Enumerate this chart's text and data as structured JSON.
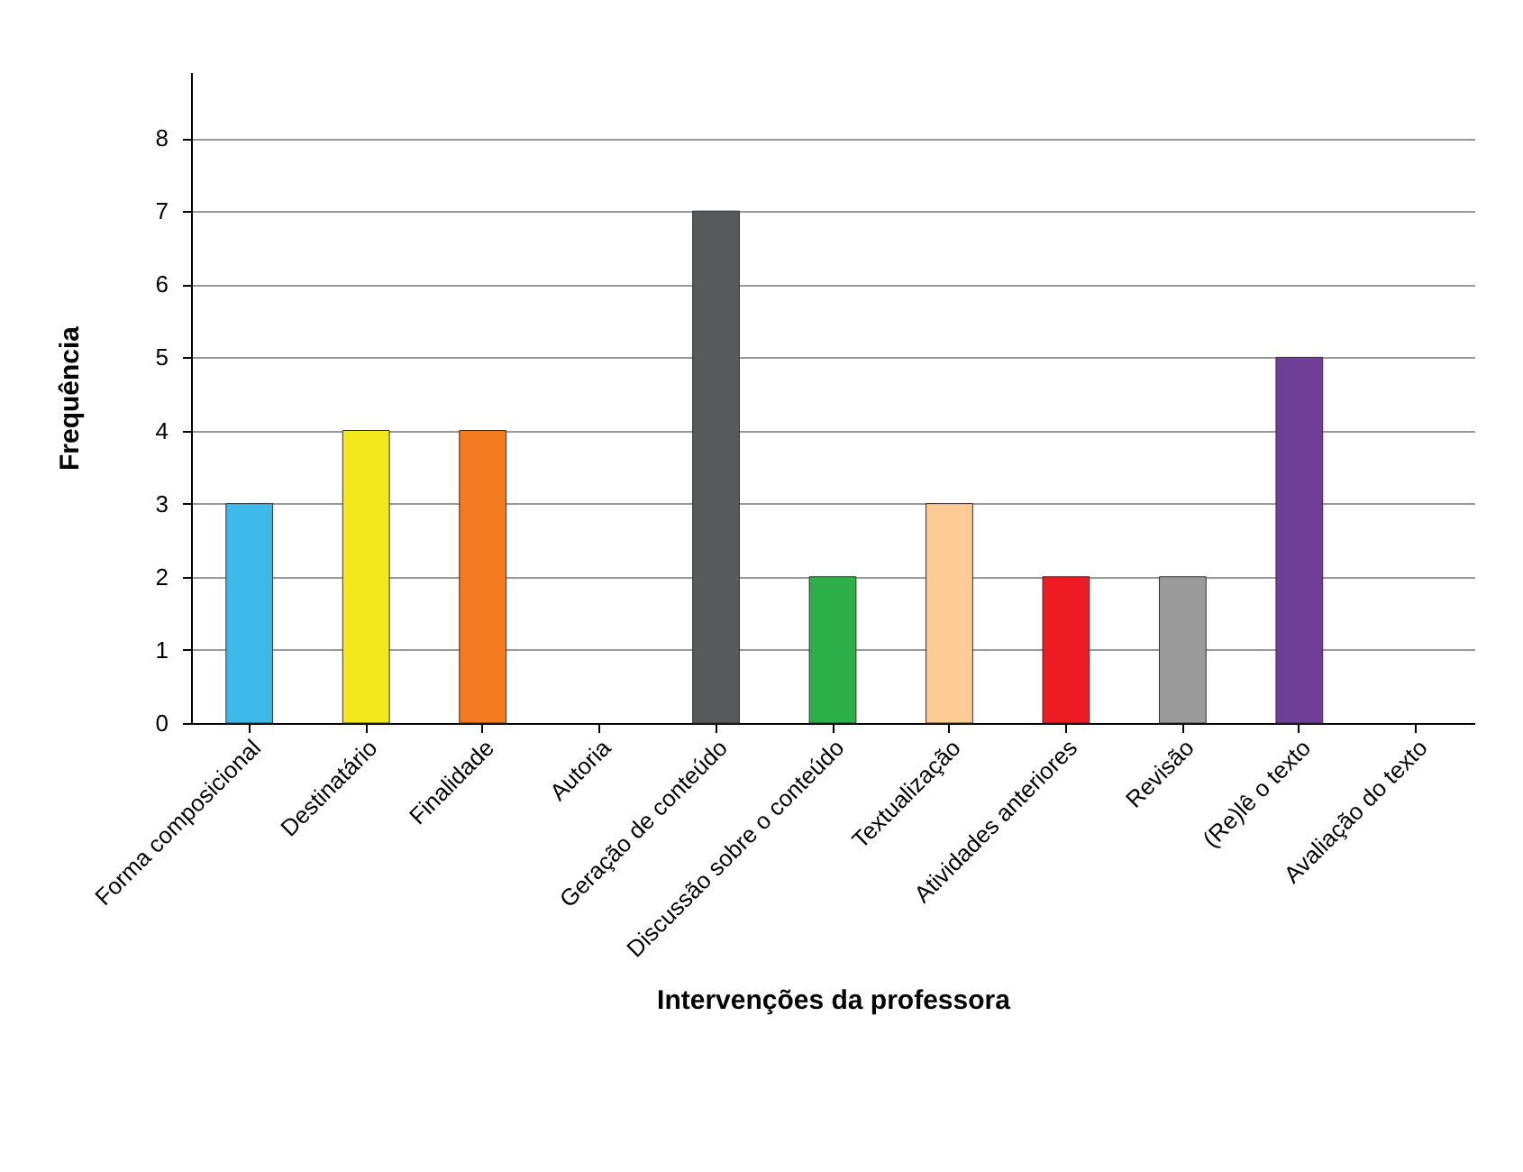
{
  "chart_data": {
    "type": "bar",
    "xlabel": "Intervenções da professora",
    "ylabel": "Frequência",
    "categories": [
      "Forma composicional",
      "Destinatário",
      "Finalidade",
      "Autoria",
      "Geração de conteúdo",
      "Discussão sobre o conteúdo",
      "Textualização",
      "Atividades anteriores",
      "Revisão",
      "(Re)lê o texto",
      "Avaliação do texto"
    ],
    "values": [
      3,
      4,
      4,
      0,
      7,
      2,
      3,
      2,
      2,
      5,
      0
    ],
    "colors": [
      "#3db9ea",
      "#f2e81c",
      "#f47a20",
      "#999999",
      "#58595b",
      "#2db04a",
      "#fdcb96",
      "#ed1c24",
      "#9b9b9b",
      "#6f3f97",
      "#999999"
    ],
    "ylim": [
      0,
      8.9
    ],
    "yticks": [
      0,
      1,
      2,
      3,
      4,
      5,
      6,
      7,
      8
    ],
    "grid": "y",
    "legend": false
  }
}
